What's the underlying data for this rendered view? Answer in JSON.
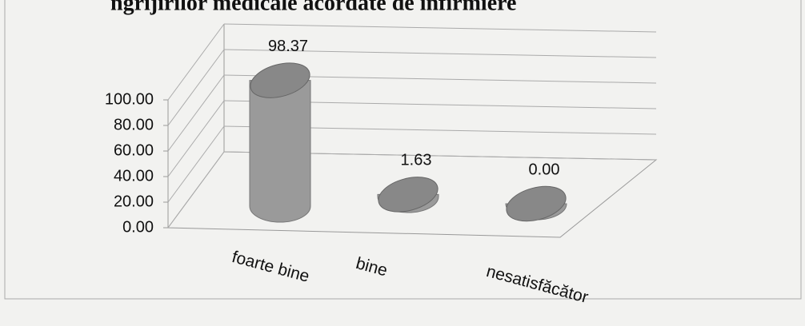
{
  "chart_data": {
    "type": "bar3d",
    "title": "ngrijirilor medicale acordate de infirmiere",
    "categories": [
      "foarte bine",
      "bine",
      "nesatisfăcător"
    ],
    "values": [
      98.37,
      1.63,
      0
    ],
    "value_labels": [
      "98.37",
      "1.63",
      "0.00"
    ],
    "color": "#9a9a9a",
    "ylim": [
      0,
      100
    ],
    "yticks": [
      {
        "value": 0,
        "label": "0.00"
      },
      {
        "value": 20,
        "label": "20.00"
      },
      {
        "value": 40,
        "label": "40.00"
      },
      {
        "value": 60,
        "label": "60.00"
      },
      {
        "value": 80,
        "label": "80.00"
      },
      {
        "value": 100,
        "label": "100.00"
      }
    ],
    "grid": true
  }
}
